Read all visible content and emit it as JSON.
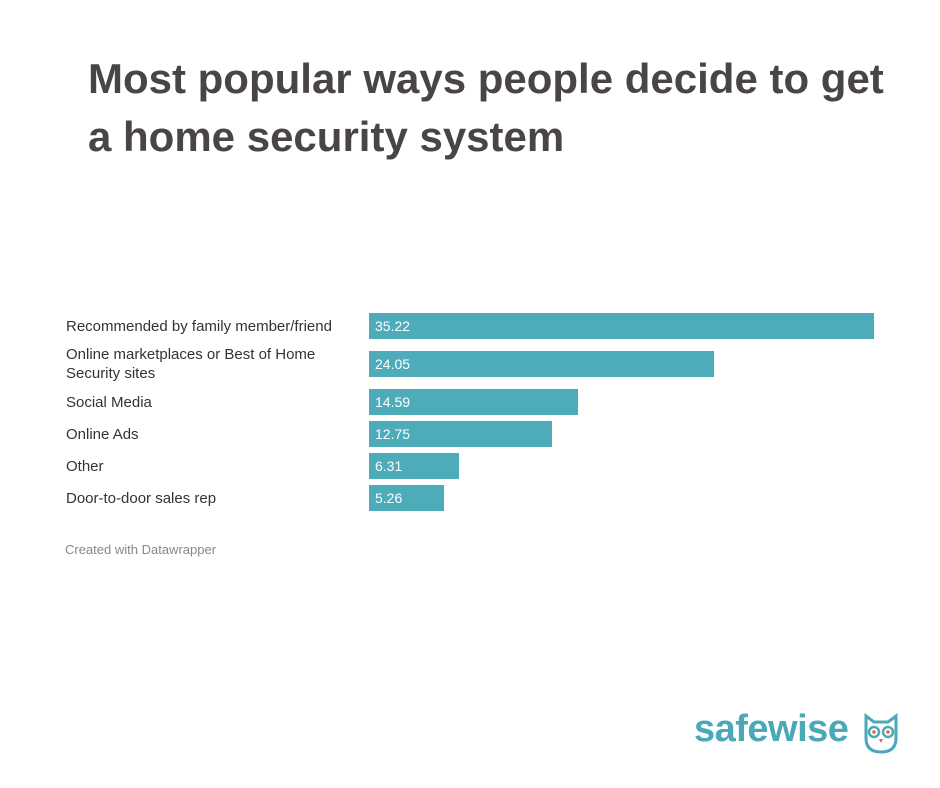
{
  "chart_data": {
    "type": "bar",
    "orientation": "horizontal",
    "title": "Most popular ways people decide to get a home security system",
    "categories": [
      "Recommended by family member/friend",
      "Online marketplaces or Best of Home Security sites",
      "Social Media",
      "Online Ads",
      "Other",
      "Door-to-door sales rep"
    ],
    "values": [
      35.22,
      24.05,
      14.59,
      12.75,
      6.31,
      5.26
    ],
    "color": "#4eabb9",
    "footer": "Created with Datawrapper",
    "logo": "safewise"
  }
}
